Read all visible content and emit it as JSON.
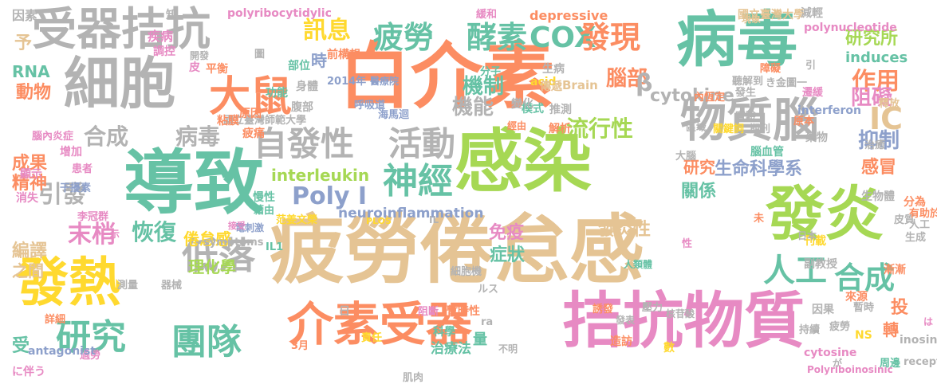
{
  "words": [
    {
      "text": "疲勞倦怠感",
      "color": "#E5C494"
    },
    {
      "text": "感染",
      "color": "#A6D854"
    },
    {
      "text": "白介素",
      "color": "#FC8D62"
    },
    {
      "text": "導致",
      "color": "#66C2A5"
    },
    {
      "text": "病毒",
      "color": "#66C2A5"
    },
    {
      "text": "拮抗物質",
      "color": "#E78AC3"
    },
    {
      "text": "發炎",
      "color": "#A6D854"
    },
    {
      "text": "介素受器",
      "color": "#FC8D62"
    },
    {
      "text": "發熱",
      "color": "#FFD92F"
    },
    {
      "text": "細胞",
      "color": "#B3B3B3"
    },
    {
      "text": "受器拮抗",
      "color": "#B3B3B3"
    },
    {
      "text": "物質腦",
      "color": "#B3B3B3"
    },
    {
      "text": "研究",
      "color": "#66C2A5"
    },
    {
      "text": "團隊",
      "color": "#66C2A5"
    },
    {
      "text": "低落",
      "color": "#B3B3B3"
    },
    {
      "text": "大鼠",
      "color": "#FC8D62"
    },
    {
      "text": "神經",
      "color": "#66C2A5"
    },
    {
      "text": "自發性",
      "color": "#B3B3B3"
    },
    {
      "text": "活動",
      "color": "#B3B3B3"
    },
    {
      "text": "人工",
      "color": "#66C2A5"
    },
    {
      "text": "合成",
      "color": "#66C2A5"
    },
    {
      "text": "Poly I",
      "color": "#8DA0CB"
    },
    {
      "text": "疲勞",
      "color": "#66C2A5"
    },
    {
      "text": "酵素",
      "color": "#66C2A5"
    },
    {
      "text": "COX",
      "color": "#66C2A5"
    },
    {
      "text": "發現",
      "color": "#FC8D62"
    },
    {
      "text": "訊息",
      "color": "#FFD92F"
    },
    {
      "text": "作用",
      "color": "#FC8D62"
    },
    {
      "text": "合成",
      "color": "#B3B3B3"
    },
    {
      "text": "病毒",
      "color": "#B3B3B3"
    },
    {
      "text": "引發",
      "color": "#B3B3B3"
    },
    {
      "text": "末梢",
      "color": "#E78AC3"
    },
    {
      "text": "恢復",
      "color": "#66C2A5"
    },
    {
      "text": "流行性",
      "color": "#A6D854"
    },
    {
      "text": "機制",
      "color": "#66C2A5"
    },
    {
      "text": "機能",
      "color": "#B3B3B3"
    },
    {
      "text": "腦部",
      "color": "#FC8D62"
    },
    {
      "text": "cytokine",
      "color": "#B3B3B3"
    },
    {
      "text": "阻礙",
      "color": "#E78AC3"
    },
    {
      "text": "抑制",
      "color": "#8DA0CB"
    },
    {
      "text": "IC",
      "color": "#E5C494"
    },
    {
      "text": "β",
      "color": "#B3B3B3"
    },
    {
      "text": "時",
      "color": "#8DA0CB"
    },
    {
      "text": "研究所",
      "color": "#A6D854"
    },
    {
      "text": "induces",
      "color": "#66C2A5"
    },
    {
      "text": "生命科學系",
      "color": "#8DA0CB"
    },
    {
      "text": "關係",
      "color": "#66C2A5"
    },
    {
      "text": "感冒",
      "color": "#FC8D62"
    },
    {
      "text": "研究",
      "color": "#FC8D62"
    },
    {
      "text": "interleukin",
      "color": "#A6D854"
    },
    {
      "text": "neuroinflammation",
      "color": "#8DA0CB"
    },
    {
      "text": "發炎性",
      "color": "#E5C494"
    },
    {
      "text": "免疫",
      "color": "#E78AC3"
    },
    {
      "text": "症狀",
      "color": "#66C2A5"
    },
    {
      "text": "倦怠感",
      "color": "#FFD92F"
    },
    {
      "text": "理化學",
      "color": "#A6D854"
    },
    {
      "text": "編譯",
      "color": "#E5C494"
    },
    {
      "text": "之間",
      "color": "#E5C494"
    },
    {
      "text": "成果",
      "color": "#FC8D62"
    },
    {
      "text": "精神",
      "color": "#FC8D62"
    },
    {
      "text": "動物",
      "color": "#FC8D62"
    },
    {
      "text": "RNA",
      "color": "#66C2A5"
    },
    {
      "text": "予",
      "color": "#E5C494"
    },
    {
      "text": "depressive",
      "color": "#FC8D62"
    },
    {
      "text": "國立臺灣大學",
      "color": "#E5C494"
    },
    {
      "text": "減輕",
      "color": "#B3B3B3"
    },
    {
      "text": "polynucleotide",
      "color": "#E78AC3"
    },
    {
      "text": "polyribocytidylic",
      "color": "#E78AC3"
    },
    {
      "text": "symptoms",
      "color": "#B3B3B3"
    },
    {
      "text": "IL1",
      "color": "#66C2A5"
    },
    {
      "text": "Brain",
      "color": "#E5C494"
    },
    {
      "text": "interferon",
      "color": "#8DA0CB"
    },
    {
      "text": "轉",
      "color": "#FC8D62"
    },
    {
      "text": "投",
      "color": "#FC8D62"
    },
    {
      "text": "量",
      "color": "#66C2A5"
    },
    {
      "text": "受",
      "color": "#66C2A5"
    },
    {
      "text": "因素",
      "color": "#B3B3B3"
    },
    {
      "text": "疾病",
      "color": "#E78AC3"
    },
    {
      "text": "調控",
      "color": "#E78AC3"
    },
    {
      "text": "腦內炎症",
      "color": "#E78AC3"
    },
    {
      "text": "增加",
      "color": "#E78AC3"
    },
    {
      "text": "顯示",
      "color": "#E78AC3"
    },
    {
      "text": "消失",
      "color": "#E78AC3"
    },
    {
      "text": "干擾素",
      "color": "#8DA0CB"
    },
    {
      "text": "患者",
      "color": "#E78AC3"
    },
    {
      "text": "李冠群",
      "color": "#E78AC3"
    },
    {
      "text": "過勞",
      "color": "#E78AC3"
    },
    {
      "text": "に伴う",
      "color": "#E78AC3"
    },
    {
      "text": "antagonist",
      "color": "#8DA0CB"
    },
    {
      "text": "詳細",
      "color": "#FC8D62"
    },
    {
      "text": "測量",
      "color": "#B3B3B3"
    },
    {
      "text": "器械",
      "color": "#B3B3B3"
    },
    {
      "text": "海馬迴",
      "color": "#8DA0CB"
    },
    {
      "text": "呼吸道",
      "color": "#8DA0CB"
    },
    {
      "text": "國立臺灣師範大學",
      "color": "#B3B3B3"
    },
    {
      "text": "2014年",
      "color": "#8DA0CB"
    },
    {
      "text": "醫療院",
      "color": "#8DA0CB"
    },
    {
      "text": "治療法",
      "color": "#66C2A5"
    },
    {
      "text": "科學",
      "color": "#66C2A5"
    },
    {
      "text": "責任",
      "color": "#FFD92F"
    },
    {
      "text": "3月",
      "color": "#FC8D62"
    },
    {
      "text": "肌肉",
      "color": "#B3B3B3"
    },
    {
      "text": "造訪",
      "color": "#FC8D62"
    },
    {
      "text": "暫時性",
      "color": "#FC8D62"
    },
    {
      "text": "阻斷",
      "color": "#E78AC3"
    },
    {
      "text": "細胞機",
      "color": "#B3B3B3"
    },
    {
      "text": "PLOS",
      "color": "#FFD92F"
    },
    {
      "text": "范姜文榮",
      "color": "#FFD92F"
    },
    {
      "text": "慢性",
      "color": "#66C2A5"
    },
    {
      "text": "藉由",
      "color": "#66C2A5"
    },
    {
      "text": "電刺激",
      "color": "#8DA0CB"
    },
    {
      "text": "接受",
      "color": "#E78AC3"
    },
    {
      "text": "緩和",
      "color": "#E78AC3"
    },
    {
      "text": "知",
      "color": "#B3B3B3"
    },
    {
      "text": "皮",
      "color": "#E78AC3"
    },
    {
      "text": "平衡",
      "color": "#FC8D62"
    },
    {
      "text": "腹部",
      "color": "#B3B3B3"
    },
    {
      "text": "身體",
      "color": "#B3B3B3"
    },
    {
      "text": "原因",
      "color": "#FC8D62"
    },
    {
      "text": "疲痛",
      "color": "#FC8D62"
    },
    {
      "text": "粘膜",
      "color": "#FC8D62"
    },
    {
      "text": "功能",
      "color": "#66C2A5"
    },
    {
      "text": "部位",
      "color": "#66C2A5"
    },
    {
      "text": "前構想",
      "color": "#FC8D62"
    },
    {
      "text": "開發",
      "color": "#B3B3B3"
    },
    {
      "text": "acid",
      "color": "#FFD92F"
    },
    {
      "text": "生病",
      "color": "#B3B3B3"
    },
    {
      "text": "分子",
      "color": "#66C2A5"
    },
    {
      "text": "傳遞",
      "color": "#E5C494"
    },
    {
      "text": "模式",
      "color": "#66C2A5"
    },
    {
      "text": "推測",
      "color": "#B3B3B3"
    },
    {
      "text": "變化",
      "color": "#B3B3B3"
    },
    {
      "text": "經由",
      "color": "#FC8D62"
    },
    {
      "text": "解析",
      "color": "#FC8D62"
    },
    {
      "text": "內恆定",
      "color": "#FC8D62"
    },
    {
      "text": "實驗",
      "color": "#B3B3B3"
    },
    {
      "text": "關鍵詞",
      "color": "#FFD92F"
    },
    {
      "text": "期刊",
      "color": "#B3B3B3"
    },
    {
      "text": "腦血管",
      "color": "#66C2A5"
    },
    {
      "text": "原本",
      "color": "#FC8D62"
    },
    {
      "text": "藥物",
      "color": "#B3B3B3"
    },
    {
      "text": "發生",
      "color": "#B3B3B3"
    },
    {
      "text": "區域",
      "color": "#B3B3B3"
    },
    {
      "text": "大腦",
      "color": "#B3B3B3"
    },
    {
      "text": "障礙",
      "color": "#FC8D62"
    },
    {
      "text": "聽解到",
      "color": "#B3B3B3"
    },
    {
      "text": "き金圖一",
      "color": "#B3B3B3"
    },
    {
      "text": "遷緩",
      "color": "#E78AC3"
    },
    {
      "text": "現象",
      "color": "#E5C494"
    },
    {
      "text": "釋放",
      "color": "#E5C494"
    },
    {
      "text": "治癒",
      "color": "#B3B3B3"
    },
    {
      "text": "生物體",
      "color": "#B3B3B3"
    },
    {
      "text": "皮質",
      "color": "#B3B3B3"
    },
    {
      "text": "分為",
      "color": "#FC8D62"
    },
    {
      "text": "有助於",
      "color": "#FC8D62"
    },
    {
      "text": "人工",
      "color": "#B3B3B3"
    },
    {
      "text": "生成",
      "color": "#B3B3B3"
    },
    {
      "text": "漸漸",
      "color": "#FC8D62"
    },
    {
      "text": "刊載",
      "color": "#FFD92F"
    },
    {
      "text": "副教授",
      "color": "#B3B3B3"
    },
    {
      "text": "來源",
      "color": "#FC8D62"
    },
    {
      "text": "暫時",
      "color": "#B3B3B3"
    },
    {
      "text": "因果",
      "color": "#B3B3B3"
    },
    {
      "text": "NS",
      "color": "#FFD92F"
    },
    {
      "text": "發表",
      "color": "#B3B3B3"
    },
    {
      "text": "誘發",
      "color": "#FC8D62"
    },
    {
      "text": "壓力",
      "color": "#B3B3B3"
    },
    {
      "text": "核苷酸",
      "color": "#B3B3B3"
    },
    {
      "text": "疲勞",
      "color": "#B3B3B3"
    },
    {
      "text": "持續",
      "color": "#B3B3B3"
    },
    {
      "text": "cytosine",
      "color": "#E78AC3"
    },
    {
      "text": "Polyriboinosinic",
      "color": "#E78AC3"
    },
    {
      "text": "inosine",
      "color": "#B3B3B3"
    },
    {
      "text": "receptor",
      "color": "#B3B3B3"
    },
    {
      "text": "周邊",
      "color": "#66C2A5"
    },
    {
      "text": "人類體",
      "color": "#66C2A5"
    },
    {
      "text": "不明",
      "color": "#B3B3B3"
    },
    {
      "text": "日本",
      "color": "#B3B3B3"
    },
    {
      "text": "IL",
      "color": "#B3B3B3"
    },
    {
      "text": "ra",
      "color": "#B3B3B3"
    },
    {
      "text": "ルス",
      "color": "#B3B3B3"
    },
    {
      "text": "未",
      "color": "#FC8D62"
    },
    {
      "text": "性",
      "color": "#E78AC3"
    },
    {
      "text": "圖",
      "color": "#B3B3B3"
    },
    {
      "text": "引",
      "color": "#B3B3B3"
    },
    {
      "text": "示",
      "color": "#E78AC3"
    },
    {
      "text": "日",
      "color": "#B3B3B3"
    },
    {
      "text": "數",
      "color": "#FFD92F"
    },
    {
      "text": "が",
      "color": "#B3B3B3"
    },
    {
      "text": "は",
      "color": "#E78AC3"
    }
  ]
}
